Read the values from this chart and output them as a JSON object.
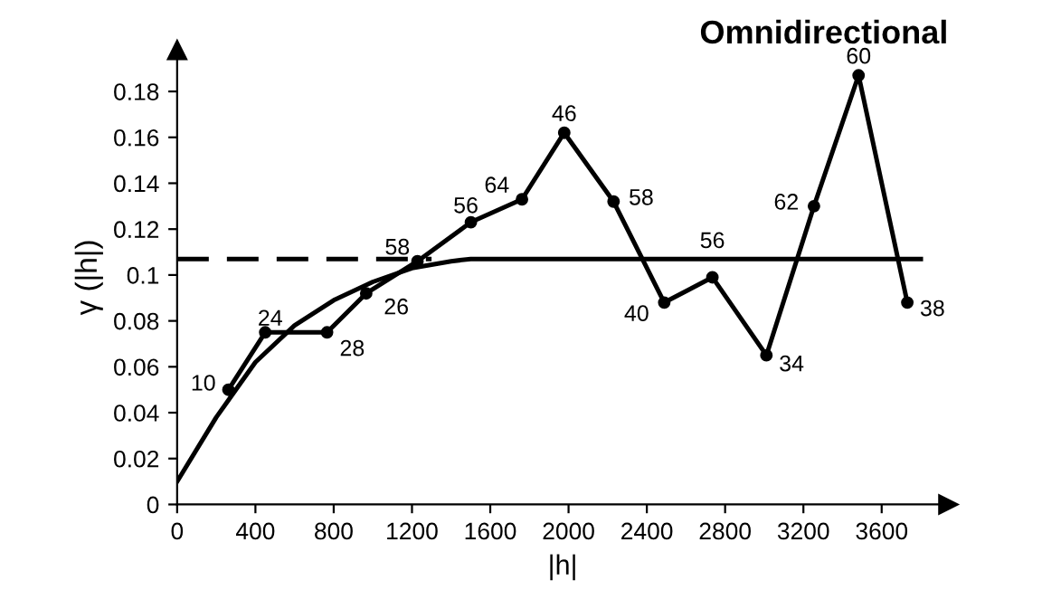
{
  "chart_data": {
    "type": "line",
    "title": "Omnidirectional",
    "xlabel": "|h|",
    "ylabel": "γ (|h|)",
    "xlim": [
      0,
      3940
    ],
    "ylim": [
      0,
      0.198
    ],
    "xticks": [
      0,
      400,
      800,
      1200,
      1600,
      2000,
      2400,
      2800,
      3200,
      3600
    ],
    "yticks": [
      0,
      0.02,
      0.04,
      0.06,
      0.08,
      0.1,
      0.12,
      0.14,
      0.16,
      0.18
    ],
    "grid": false,
    "legend": false,
    "annotations": [
      {
        "text": "10",
        "x": 262,
        "y": 0.05
      },
      {
        "text": "24",
        "x": 450,
        "y": 0.075
      },
      {
        "text": "28",
        "x": 766,
        "y": 0.075
      },
      {
        "text": "26",
        "x": 966,
        "y": 0.092
      },
      {
        "text": "58",
        "x": 1228,
        "y": 0.106
      },
      {
        "text": "56",
        "x": 1501,
        "y": 0.123
      },
      {
        "text": "64",
        "x": 1762,
        "y": 0.133
      },
      {
        "text": "46",
        "x": 1978,
        "y": 0.162
      },
      {
        "text": "58",
        "x": 2230,
        "y": 0.132
      },
      {
        "text": "40",
        "x": 2489,
        "y": 0.088
      },
      {
        "text": "56",
        "x": 2735,
        "y": 0.099
      },
      {
        "text": "34",
        "x": 3011,
        "y": 0.065
      },
      {
        "text": "62",
        "x": 3254,
        "y": 0.13
      },
      {
        "text": "60",
        "x": 3482,
        "y": 0.187
      },
      {
        "text": "38",
        "x": 3731,
        "y": 0.088
      }
    ],
    "series": [
      {
        "color": "#000000",
        "marker": "circle",
        "line_style": "solid",
        "x": [
          262,
          450,
          766,
          966,
          1228,
          1501,
          1762,
          1978,
          2230,
          2489,
          2735,
          3011,
          3254,
          3482,
          3731
        ],
        "values": [
          0.05,
          0.075,
          0.075,
          0.092,
          0.106,
          0.123,
          0.133,
          0.162,
          0.132,
          0.088,
          0.099,
          0.065,
          0.13,
          0.187,
          0.088
        ]
      },
      {
        "color": "#000000",
        "marker": "none",
        "line_style": "solid",
        "x": [
          0,
          200,
          400,
          600,
          800,
          1000,
          1200,
          1400,
          1500,
          3800
        ],
        "values": [
          0.01,
          0.038,
          0.062,
          0.078,
          0.089,
          0.097,
          0.103,
          0.106,
          0.107,
          0.107
        ]
      },
      {
        "color": "#000000",
        "marker": "none",
        "line_style": "dashed",
        "x": [
          0,
          1300
        ],
        "values": [
          0.107,
          0.107
        ]
      }
    ]
  }
}
